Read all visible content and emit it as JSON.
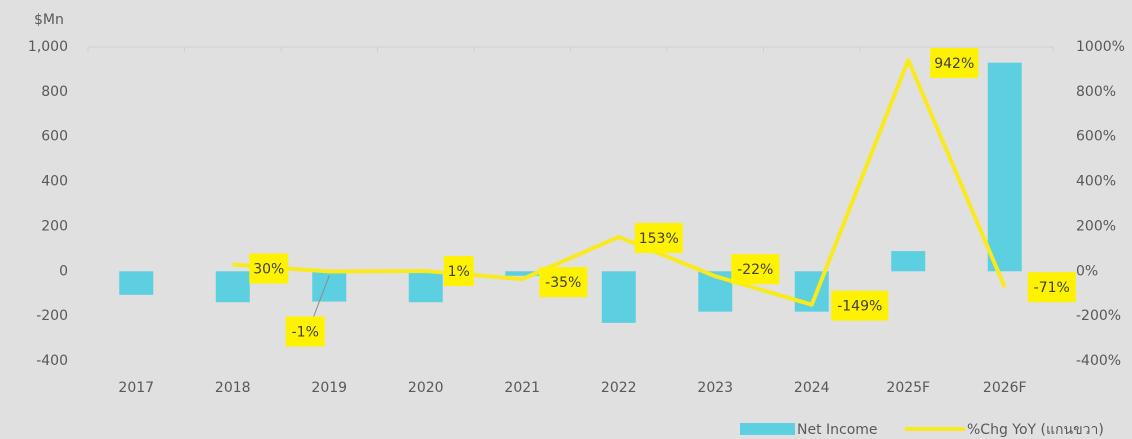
{
  "chart_data": {
    "type": "bar_line",
    "y_axis_label": "$Mn",
    "categories": [
      "2017",
      "2018",
      "2019",
      "2020",
      "2021",
      "2022",
      "2023",
      "2024",
      "2025F",
      "2026F"
    ],
    "series": [
      {
        "name": "Net Income",
        "type": "bar",
        "color": "#5ccfe0",
        "values": [
          -105,
          -138,
          -135,
          -138,
          -20,
          -230,
          -180,
          -180,
          90,
          930
        ]
      },
      {
        "name": "%Chg YoY (แกนขวา)",
        "type": "line",
        "axis": "y2",
        "color": "#f9ea1e",
        "values": [
          null,
          30,
          -1,
          1,
          -35,
          153,
          -22,
          -149,
          942,
          -71
        ],
        "value_labels": [
          null,
          "30%",
          "-1%",
          "1%",
          "-35%",
          "153%",
          "-22%",
          "-149%",
          "942%",
          "-71%"
        ]
      }
    ],
    "ylim": [
      -400,
      1000
    ],
    "yticks": [
      -400,
      -200,
      0,
      200,
      400,
      600,
      800,
      {
        "value": 1000,
        "label": "1,000"
      }
    ],
    "y2lim": [
      -400,
      1000
    ],
    "y2ticks": [
      {
        "value": -400,
        "label": "-400%"
      },
      {
        "value": -200,
        "label": "-200%"
      },
      {
        "value": 0,
        "label": "0%"
      },
      {
        "value": 200,
        "label": "200%"
      },
      {
        "value": 400,
        "label": "400%"
      },
      {
        "value": 600,
        "label": "600%"
      },
      {
        "value": 800,
        "label": "800%"
      },
      {
        "value": 1000,
        "label": "1000%"
      }
    ],
    "legend": "bottom-right"
  }
}
